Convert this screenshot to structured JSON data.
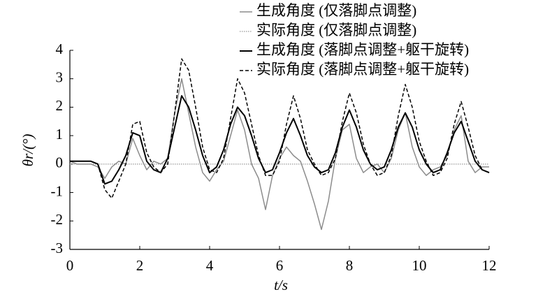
{
  "chart_data": {
    "type": "line",
    "x_label": "t/s",
    "y_label": "θr/(°)",
    "x": [
      0,
      0.2,
      0.4,
      0.6,
      0.8,
      1.0,
      1.2,
      1.4,
      1.6,
      1.8,
      2.0,
      2.2,
      2.4,
      2.6,
      2.8,
      3.0,
      3.2,
      3.4,
      3.6,
      3.8,
      4.0,
      4.2,
      4.4,
      4.6,
      4.8,
      5.0,
      5.2,
      5.4,
      5.6,
      5.8,
      6.0,
      6.2,
      6.4,
      6.6,
      6.8,
      7.0,
      7.2,
      7.4,
      7.6,
      7.8,
      8.0,
      8.2,
      8.4,
      8.6,
      8.8,
      9.0,
      9.2,
      9.4,
      9.6,
      9.8,
      10.0,
      10.2,
      10.4,
      10.6,
      10.8,
      11.0,
      11.2,
      11.4,
      11.6,
      11.8,
      12.0
    ],
    "series": [
      {
        "name": "生成角度 (仅落脚点调整)",
        "color": "#8c8c8c",
        "dash": "none",
        "width": 1.5,
        "values": [
          0.1,
          0.0,
          0.0,
          0.0,
          -0.1,
          -0.5,
          -0.1,
          0.1,
          0.0,
          0.9,
          0.3,
          -0.2,
          0.1,
          0.0,
          0.2,
          1.8,
          3.0,
          1.8,
          0.6,
          -0.3,
          -0.6,
          -0.2,
          0.1,
          1.0,
          1.9,
          1.2,
          0.0,
          -0.5,
          -1.6,
          -0.4,
          0.2,
          0.6,
          0.3,
          0.1,
          -0.6,
          -1.4,
          -2.3,
          -1.3,
          0.2,
          1.2,
          1.4,
          0.2,
          -0.3,
          -0.1,
          0.0,
          -0.3,
          0.2,
          1.2,
          1.8,
          0.6,
          -0.1,
          -0.4,
          -0.2,
          -0.1,
          0.3,
          1.2,
          1.7,
          0.1,
          -0.3,
          -0.1,
          -0.1
        ]
      },
      {
        "name": "实际角度 (仅落脚点调整)",
        "color": "#aaaaaa",
        "dash": "1.5,1.5",
        "width": 1.5,
        "values": [
          0,
          0,
          0,
          0,
          0,
          0,
          0,
          0,
          0,
          0,
          0,
          0,
          0,
          0,
          0,
          0,
          0,
          0,
          0,
          0,
          0,
          0,
          0,
          0,
          0,
          0,
          0,
          0,
          0,
          0,
          0,
          0,
          0,
          0,
          0,
          0,
          0,
          0,
          0,
          0,
          0,
          0,
          0,
          0,
          0,
          0,
          0,
          0,
          0,
          0,
          0,
          0,
          0,
          0,
          0,
          0,
          0,
          0,
          0,
          0,
          0
        ]
      },
      {
        "name": "生成角度 (落脚点调整+躯干旋转)",
        "color": "#000000",
        "dash": "none",
        "width": 2,
        "values": [
          0.1,
          0.1,
          0.1,
          0.1,
          0.0,
          -0.7,
          -0.6,
          -0.2,
          0.3,
          1.1,
          1.0,
          0.1,
          -0.2,
          -0.3,
          0.2,
          1.3,
          2.4,
          2.0,
          1.2,
          0.3,
          -0.3,
          -0.1,
          0.5,
          1.4,
          2.0,
          1.7,
          1.0,
          0.2,
          -0.3,
          -0.2,
          0.4,
          1.1,
          1.6,
          1.0,
          0.3,
          -0.1,
          -0.3,
          -0.2,
          0.4,
          1.3,
          1.9,
          1.3,
          0.5,
          0.0,
          -0.2,
          -0.1,
          0.5,
          1.3,
          1.8,
          1.3,
          0.5,
          0.0,
          -0.3,
          -0.2,
          0.4,
          1.1,
          1.5,
          0.8,
          0.1,
          -0.2,
          -0.3
        ]
      },
      {
        "name": "实际角度 (落脚点调整+躯干旋转)",
        "color": "#000000",
        "dash": "5,3",
        "width": 1.5,
        "values": [
          0.1,
          0.1,
          0.1,
          0.1,
          0.0,
          -0.9,
          -1.2,
          -0.6,
          0.0,
          1.4,
          1.5,
          0.4,
          -0.1,
          -0.3,
          0.0,
          1.8,
          3.7,
          3.3,
          2.0,
          0.6,
          -0.2,
          -0.3,
          0.2,
          1.6,
          3.0,
          2.5,
          1.4,
          0.3,
          -0.4,
          -0.4,
          0.1,
          1.4,
          2.4,
          1.6,
          0.5,
          0.0,
          -0.4,
          -0.3,
          0.2,
          1.5,
          2.5,
          1.8,
          0.7,
          0.0,
          -0.4,
          -0.3,
          0.3,
          1.7,
          2.8,
          2.0,
          0.8,
          0.1,
          -0.4,
          -0.3,
          0.2,
          1.4,
          2.2,
          1.3,
          0.3,
          -0.2,
          -0.3
        ]
      }
    ],
    "xlim": [
      0,
      12
    ],
    "xticks": [
      0,
      2,
      4,
      6,
      8,
      10,
      12
    ],
    "ylim": [
      -3,
      4
    ],
    "yticks": [
      -3,
      -2,
      -1,
      0,
      1,
      2,
      3,
      4
    ],
    "grid": false,
    "legend": "top-right"
  }
}
